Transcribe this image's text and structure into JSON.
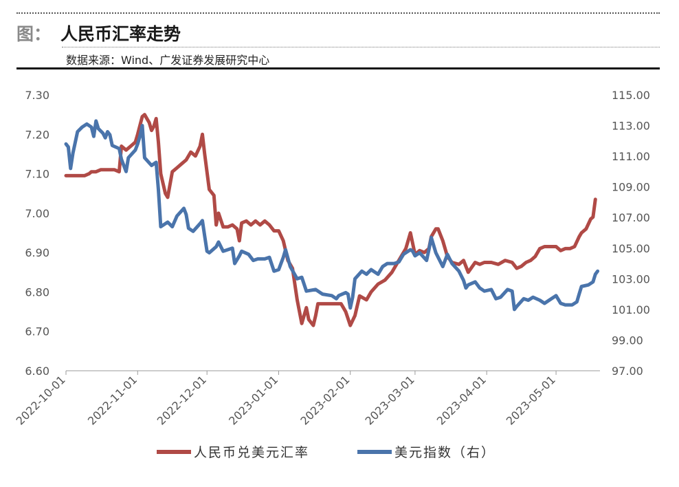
{
  "header": {
    "prefix": "图：",
    "title": "人民币汇率走势",
    "source": "数据来源：Wind、广发证券发展研究中心"
  },
  "chart_data": {
    "type": "line",
    "left_axis": {
      "ylim": [
        6.6,
        7.3
      ],
      "ticks": [
        "6.60",
        "6.70",
        "6.80",
        "6.90",
        "7.00",
        "7.10",
        "7.20",
        "7.30"
      ]
    },
    "right_axis": {
      "ylim": [
        97,
        115
      ],
      "ticks": [
        "97.00",
        "99.00",
        "101.00",
        "103.00",
        "105.00",
        "107.00",
        "109.00",
        "111.00",
        "113.00",
        "115.00"
      ]
    },
    "x_ticks": [
      "2022-10-01",
      "2022-11-01",
      "2022-12-01",
      "2023-01-01",
      "2023-02-01",
      "2023-03-01",
      "2023-04-01",
      "2023-05-01"
    ],
    "x_range": [
      "2022-10-01",
      "2023-05-20"
    ],
    "legend_position": "bottom",
    "series": [
      {
        "name": "人民币兑美元汇率",
        "axis": "left",
        "color": "#b04a46",
        "points": [
          [
            "2022-10-01",
            7.095
          ],
          [
            "2022-10-09",
            7.095
          ],
          [
            "2022-10-11",
            7.1
          ],
          [
            "2022-10-12",
            7.105
          ],
          [
            "2022-10-14",
            7.105
          ],
          [
            "2022-10-16",
            7.11
          ],
          [
            "2022-10-20",
            7.11
          ],
          [
            "2022-10-22",
            7.11
          ],
          [
            "2022-10-24",
            7.105
          ],
          [
            "2022-10-25",
            7.17
          ],
          [
            "2022-10-27",
            7.16
          ],
          [
            "2022-10-29",
            7.17
          ],
          [
            "2022-10-31",
            7.18
          ],
          [
            "2022-11-01",
            7.2
          ],
          [
            "2022-11-03",
            7.245
          ],
          [
            "2022-11-04",
            7.25
          ],
          [
            "2022-11-05",
            7.24
          ],
          [
            "2022-11-06",
            7.23
          ],
          [
            "2022-11-07",
            7.21
          ],
          [
            "2022-11-08",
            7.22
          ],
          [
            "2022-11-09",
            7.24
          ],
          [
            "2022-11-10",
            7.18
          ],
          [
            "2022-11-11",
            7.1
          ],
          [
            "2022-11-13",
            7.05
          ],
          [
            "2022-11-14",
            7.04
          ],
          [
            "2022-11-16",
            7.105
          ],
          [
            "2022-11-18",
            7.115
          ],
          [
            "2022-11-20",
            7.125
          ],
          [
            "2022-11-22",
            7.135
          ],
          [
            "2022-11-24",
            7.155
          ],
          [
            "2022-11-26",
            7.145
          ],
          [
            "2022-11-28",
            7.17
          ],
          [
            "2022-11-29",
            7.2
          ],
          [
            "2022-11-30",
            7.15
          ],
          [
            "2022-12-02",
            7.06
          ],
          [
            "2022-12-04",
            7.045
          ],
          [
            "2022-12-05",
            6.97
          ],
          [
            "2022-12-06",
            7.0
          ],
          [
            "2022-12-08",
            6.965
          ],
          [
            "2022-12-10",
            6.965
          ],
          [
            "2022-12-12",
            6.97
          ],
          [
            "2022-12-14",
            6.96
          ],
          [
            "2022-12-15",
            6.93
          ],
          [
            "2022-12-16",
            6.975
          ],
          [
            "2022-12-18",
            6.98
          ],
          [
            "2022-12-20",
            6.97
          ],
          [
            "2022-12-22",
            6.98
          ],
          [
            "2022-12-24",
            6.97
          ],
          [
            "2022-12-26",
            6.98
          ],
          [
            "2022-12-28",
            6.97
          ],
          [
            "2022-12-30",
            6.955
          ],
          [
            "2023-01-01",
            6.955
          ],
          [
            "2023-01-03",
            6.93
          ],
          [
            "2023-01-05",
            6.88
          ],
          [
            "2023-01-07",
            6.86
          ],
          [
            "2023-01-09",
            6.78
          ],
          [
            "2023-01-11",
            6.72
          ],
          [
            "2023-01-13",
            6.76
          ],
          [
            "2023-01-14",
            6.73
          ],
          [
            "2023-01-16",
            6.715
          ],
          [
            "2023-01-17",
            6.74
          ],
          [
            "2023-01-18",
            6.77
          ],
          [
            "2023-01-20",
            6.77
          ],
          [
            "2023-01-24",
            6.77
          ],
          [
            "2023-01-28",
            6.77
          ],
          [
            "2023-01-30",
            6.75
          ],
          [
            "2023-02-01",
            6.715
          ],
          [
            "2023-02-03",
            6.74
          ],
          [
            "2023-02-05",
            6.79
          ],
          [
            "2023-02-08",
            6.78
          ],
          [
            "2023-02-10",
            6.8
          ],
          [
            "2023-02-13",
            6.82
          ],
          [
            "2023-02-16",
            6.83
          ],
          [
            "2023-02-19",
            6.85
          ],
          [
            "2023-02-21",
            6.87
          ],
          [
            "2023-02-23",
            6.89
          ],
          [
            "2023-02-25",
            6.91
          ],
          [
            "2023-02-27",
            6.95
          ],
          [
            "2023-03-01",
            6.895
          ],
          [
            "2023-03-03",
            6.905
          ],
          [
            "2023-03-05",
            6.9
          ],
          [
            "2023-03-07",
            6.91
          ],
          [
            "2023-03-08",
            6.94
          ],
          [
            "2023-03-10",
            6.96
          ],
          [
            "2023-03-11",
            6.96
          ],
          [
            "2023-03-13",
            6.93
          ],
          [
            "2023-03-15",
            6.89
          ],
          [
            "2023-03-17",
            6.875
          ],
          [
            "2023-03-20",
            6.87
          ],
          [
            "2023-03-22",
            6.88
          ],
          [
            "2023-03-24",
            6.85
          ],
          [
            "2023-03-27",
            6.875
          ],
          [
            "2023-03-29",
            6.87
          ],
          [
            "2023-03-31",
            6.875
          ],
          [
            "2023-04-03",
            6.875
          ],
          [
            "2023-04-06",
            6.87
          ],
          [
            "2023-04-09",
            6.88
          ],
          [
            "2023-04-12",
            6.875
          ],
          [
            "2023-04-14",
            6.86
          ],
          [
            "2023-04-16",
            6.865
          ],
          [
            "2023-04-18",
            6.875
          ],
          [
            "2023-04-20",
            6.88
          ],
          [
            "2023-04-22",
            6.89
          ],
          [
            "2023-04-24",
            6.91
          ],
          [
            "2023-04-26",
            6.915
          ],
          [
            "2023-04-28",
            6.915
          ],
          [
            "2023-05-01",
            6.915
          ],
          [
            "2023-05-03",
            6.905
          ],
          [
            "2023-05-05",
            6.91
          ],
          [
            "2023-05-07",
            6.91
          ],
          [
            "2023-05-09",
            6.915
          ],
          [
            "2023-05-11",
            6.94
          ],
          [
            "2023-05-12",
            6.95
          ],
          [
            "2023-05-14",
            6.96
          ],
          [
            "2023-05-16",
            6.985
          ],
          [
            "2023-05-17",
            6.99
          ],
          [
            "2023-05-18",
            7.035
          ]
        ]
      },
      {
        "name": "美元指数（右）",
        "axis": "right",
        "color": "#4a74ab",
        "points": [
          [
            "2022-10-01",
            111.8
          ],
          [
            "2022-10-02",
            111.6
          ],
          [
            "2022-10-03",
            110.2
          ],
          [
            "2022-10-04",
            111.2
          ],
          [
            "2022-10-06",
            112.6
          ],
          [
            "2022-10-08",
            112.9
          ],
          [
            "2022-10-10",
            113.1
          ],
          [
            "2022-10-12",
            112.9
          ],
          [
            "2022-10-13",
            112.3
          ],
          [
            "2022-10-14",
            113.3
          ],
          [
            "2022-10-15",
            112.8
          ],
          [
            "2022-10-17",
            112.5
          ],
          [
            "2022-10-18",
            112.2
          ],
          [
            "2022-10-19",
            112.6
          ],
          [
            "2022-10-20",
            112.4
          ],
          [
            "2022-10-21",
            111.7
          ],
          [
            "2022-10-24",
            111.5
          ],
          [
            "2022-10-25",
            110.8
          ],
          [
            "2022-10-27",
            110.0
          ],
          [
            "2022-10-28",
            110.9
          ],
          [
            "2022-10-31",
            111.4
          ],
          [
            "2022-11-01",
            111.8
          ],
          [
            "2022-11-02",
            112.3
          ],
          [
            "2022-11-03",
            113.0
          ],
          [
            "2022-11-04",
            110.9
          ],
          [
            "2022-11-07",
            110.4
          ],
          [
            "2022-11-09",
            110.6
          ],
          [
            "2022-11-10",
            108.8
          ],
          [
            "2022-11-11",
            106.4
          ],
          [
            "2022-11-14",
            106.7
          ],
          [
            "2022-11-16",
            106.4
          ],
          [
            "2022-11-18",
            107.1
          ],
          [
            "2022-11-21",
            107.6
          ],
          [
            "2022-11-22",
            107.2
          ],
          [
            "2022-11-23",
            106.3
          ],
          [
            "2022-11-25",
            106.1
          ],
          [
            "2022-11-28",
            106.6
          ],
          [
            "2022-11-29",
            106.8
          ],
          [
            "2022-11-30",
            105.8
          ],
          [
            "2022-12-01",
            104.8
          ],
          [
            "2022-12-02",
            104.7
          ],
          [
            "2022-12-05",
            105.1
          ],
          [
            "2022-12-06",
            105.4
          ],
          [
            "2022-12-08",
            104.8
          ],
          [
            "2022-12-12",
            105.0
          ],
          [
            "2022-12-13",
            104.0
          ],
          [
            "2022-12-15",
            104.5
          ],
          [
            "2022-12-16",
            104.8
          ],
          [
            "2022-12-19",
            104.6
          ],
          [
            "2022-12-21",
            104.2
          ],
          [
            "2022-12-23",
            104.3
          ],
          [
            "2022-12-26",
            104.3
          ],
          [
            "2022-12-28",
            104.4
          ],
          [
            "2022-12-30",
            103.5
          ],
          [
            "2023-01-01",
            103.6
          ],
          [
            "2023-01-03",
            104.4
          ],
          [
            "2023-01-04",
            104.9
          ],
          [
            "2023-01-06",
            103.8
          ],
          [
            "2023-01-09",
            103.0
          ],
          [
            "2023-01-11",
            103.1
          ],
          [
            "2023-01-13",
            102.2
          ],
          [
            "2023-01-17",
            102.3
          ],
          [
            "2023-01-19",
            102.1
          ],
          [
            "2023-01-20",
            102.0
          ],
          [
            "2023-01-24",
            101.9
          ],
          [
            "2023-01-26",
            101.7
          ],
          [
            "2023-01-27",
            101.9
          ],
          [
            "2023-01-30",
            102.1
          ],
          [
            "2023-01-31",
            102.0
          ],
          [
            "2023-02-01",
            101.1
          ],
          [
            "2023-02-02",
            101.8
          ],
          [
            "2023-02-03",
            103.0
          ],
          [
            "2023-02-06",
            103.5
          ],
          [
            "2023-02-08",
            103.3
          ],
          [
            "2023-02-10",
            103.6
          ],
          [
            "2023-02-13",
            103.3
          ],
          [
            "2023-02-15",
            103.8
          ],
          [
            "2023-02-17",
            104.0
          ],
          [
            "2023-02-20",
            104.0
          ],
          [
            "2023-02-22",
            104.1
          ],
          [
            "2023-02-24",
            104.6
          ],
          [
            "2023-02-27",
            104.9
          ],
          [
            "2023-02-28",
            104.8
          ],
          [
            "2023-03-01",
            104.5
          ],
          [
            "2023-03-03",
            104.7
          ],
          [
            "2023-03-06",
            104.2
          ],
          [
            "2023-03-07",
            104.9
          ],
          [
            "2023-03-08",
            105.7
          ],
          [
            "2023-03-10",
            104.7
          ],
          [
            "2023-03-13",
            103.8
          ],
          [
            "2023-03-15",
            104.6
          ],
          [
            "2023-03-17",
            104.0
          ],
          [
            "2023-03-20",
            103.5
          ],
          [
            "2023-03-22",
            102.9
          ],
          [
            "2023-03-23",
            102.4
          ],
          [
            "2023-03-24",
            102.6
          ],
          [
            "2023-03-27",
            102.8
          ],
          [
            "2023-03-29",
            102.4
          ],
          [
            "2023-03-31",
            102.2
          ],
          [
            "2023-04-03",
            102.3
          ],
          [
            "2023-04-05",
            101.7
          ],
          [
            "2023-04-07",
            101.8
          ],
          [
            "2023-04-10",
            102.3
          ],
          [
            "2023-04-12",
            102.2
          ],
          [
            "2023-04-13",
            101.0
          ],
          [
            "2023-04-14",
            101.2
          ],
          [
            "2023-04-17",
            101.7
          ],
          [
            "2023-04-19",
            101.6
          ],
          [
            "2023-04-21",
            101.8
          ],
          [
            "2023-04-24",
            101.6
          ],
          [
            "2023-04-26",
            101.4
          ],
          [
            "2023-04-28",
            101.6
          ],
          [
            "2023-05-01",
            101.9
          ],
          [
            "2023-05-03",
            101.4
          ],
          [
            "2023-05-05",
            101.3
          ],
          [
            "2023-05-08",
            101.3
          ],
          [
            "2023-05-10",
            101.5
          ],
          [
            "2023-05-11",
            102.0
          ],
          [
            "2023-05-12",
            102.5
          ],
          [
            "2023-05-15",
            102.6
          ],
          [
            "2023-05-17",
            102.8
          ],
          [
            "2023-05-18",
            103.3
          ],
          [
            "2023-05-19",
            103.5
          ]
        ]
      }
    ]
  }
}
